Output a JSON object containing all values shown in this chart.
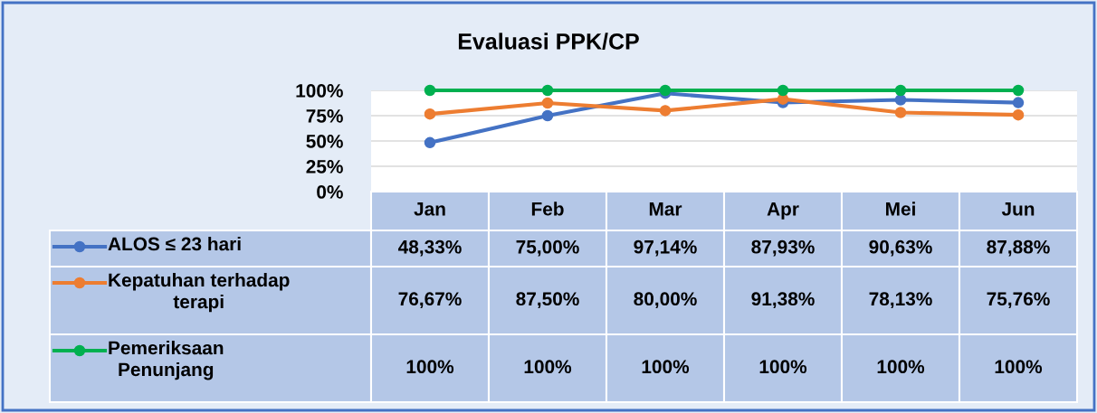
{
  "chart_data": {
    "type": "line",
    "title": "Evaluasi PPK/CP",
    "categories": [
      "Jan",
      "Feb",
      "Mar",
      "Apr",
      "Mei",
      "Jun"
    ],
    "series": [
      {
        "name": "ALOS ≤ 23 hari",
        "color": "#4472c4",
        "values": [
          48.33,
          75.0,
          97.14,
          87.93,
          90.63,
          87.88
        ],
        "value_labels": [
          "48,33%",
          "75,00%",
          "97,14%",
          "87,93%",
          "90,63%",
          "87,88%"
        ]
      },
      {
        "name": "Kepatuhan terhadap\nterapi",
        "color": "#ed7d31",
        "values": [
          76.67,
          87.5,
          80.0,
          91.38,
          78.13,
          75.76
        ],
        "value_labels": [
          "76,67%",
          "87,50%",
          "80,00%",
          "91,38%",
          "78,13%",
          "75,76%"
        ]
      },
      {
        "name": "Pemeriksaan\nPenunjang",
        "color": "#00b050",
        "values": [
          100,
          100,
          100,
          100,
          100,
          100
        ],
        "value_labels": [
          "100%",
          "100%",
          "100%",
          "100%",
          "100%",
          "100%"
        ]
      }
    ],
    "ylim": [
      0,
      100
    ],
    "yticks": [
      {
        "value": 0,
        "label": "0%"
      },
      {
        "value": 25,
        "label": "25%"
      },
      {
        "value": 50,
        "label": "50%"
      },
      {
        "value": 75,
        "label": "75%"
      },
      {
        "value": 100,
        "label": "100%"
      }
    ],
    "grid": "y",
    "legend": "bottom",
    "marker": "circle",
    "line_style": "solid"
  }
}
